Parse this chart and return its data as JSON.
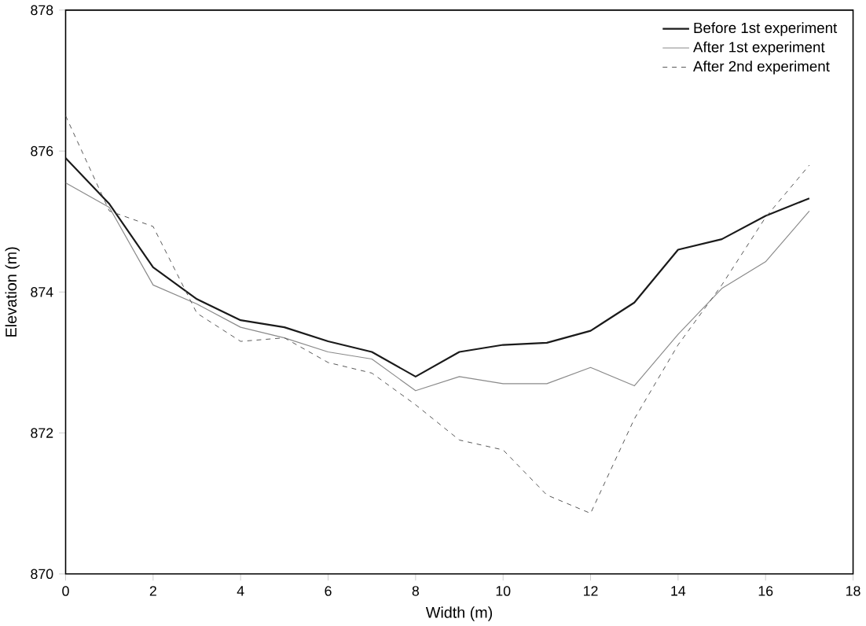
{
  "chart_data": {
    "type": "line",
    "xlabel": "Width (m)",
    "ylabel": "Elevation (m)",
    "x": [
      0,
      1,
      2,
      3,
      4,
      5,
      6,
      7,
      8,
      9,
      10,
      11,
      12,
      13,
      14,
      15,
      16,
      17
    ],
    "series": [
      {
        "name": "Before 1st experiment",
        "color": "#1a1a1a",
        "line_style": "solid",
        "values": [
          875.9,
          875.25,
          874.35,
          873.9,
          873.6,
          873.5,
          873.3,
          873.15,
          872.8,
          873.15,
          873.25,
          873.28,
          873.45,
          873.85,
          874.6,
          874.75,
          875.08,
          875.33
        ]
      },
      {
        "name": "After 1st experiment",
        "color": "#8a8a8a",
        "line_style": "solid",
        "values": [
          875.55,
          875.2,
          874.1,
          873.83,
          873.5,
          873.35,
          873.15,
          873.05,
          872.6,
          872.8,
          872.7,
          872.7,
          872.93,
          872.67,
          873.4,
          874.05,
          874.43,
          875.15
        ]
      },
      {
        "name": "After 2nd experiment",
        "color": "#555555",
        "line_style": "dashed",
        "values": [
          876.5,
          875.15,
          874.93,
          873.7,
          873.3,
          873.35,
          873.0,
          872.85,
          872.4,
          871.9,
          871.76,
          871.12,
          870.86,
          872.2,
          873.25,
          874.1,
          875.06,
          875.8
        ]
      }
    ],
    "xlim": [
      0,
      18
    ],
    "xticks": [
      0,
      2,
      4,
      6,
      8,
      10,
      12,
      14,
      16,
      18
    ],
    "ylim": [
      870,
      878
    ],
    "yticks": [
      870,
      872,
      874,
      876,
      878
    ],
    "grid": false,
    "legend": "top right",
    "marker": "none"
  }
}
